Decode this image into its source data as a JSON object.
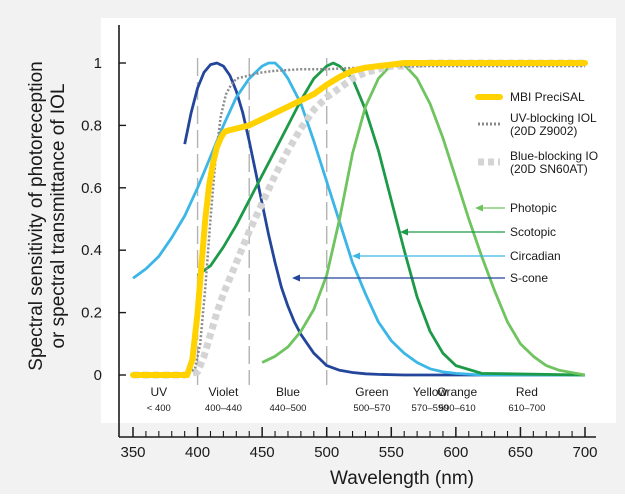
{
  "chart_data": {
    "type": "line",
    "xlabel": "Wavelength (nm)",
    "ylabel_line1": "Spectral sensitivity of photoreception",
    "ylabel_line2": "or spectral transmittance of IOL",
    "xlim": [
      350,
      700
    ],
    "ylim": [
      0,
      1
    ],
    "xticks": [
      "350",
      "400",
      "450",
      "500",
      "550",
      "600",
      "650",
      "700"
    ],
    "yticks": [
      "0",
      "0.2",
      "0.4",
      "0.6",
      "0.8",
      "1"
    ],
    "grid": false,
    "legend_position": "right",
    "bands": [
      {
        "name": "UV",
        "range": "< 400",
        "center": 370
      },
      {
        "name": "Violet",
        "range": "400–440",
        "center": 420
      },
      {
        "name": "Blue",
        "range": "440–500",
        "center": 470
      },
      {
        "name": "Green",
        "range": "500–570",
        "center": 535
      },
      {
        "name": "Yellow",
        "range": "570–590",
        "center": 580
      },
      {
        "name": "Orange",
        "range": "590–610",
        "center": 601
      },
      {
        "name": "Red",
        "range": "610–700",
        "center": 655
      }
    ],
    "band_dividers": [
      400,
      440,
      500
    ],
    "series": [
      {
        "name": "S-cone",
        "color": "#23469b",
        "style": "solid",
        "x": [
          390,
          395,
          400,
          405,
          410,
          415,
          420,
          425,
          430,
          435,
          440,
          445,
          450,
          455,
          460,
          465,
          470,
          475,
          480,
          485,
          490,
          495,
          500,
          510,
          520,
          530,
          540,
          560,
          600,
          700
        ],
        "y": [
          0.74,
          0.84,
          0.92,
          0.97,
          0.995,
          1.0,
          0.99,
          0.96,
          0.91,
          0.84,
          0.75,
          0.65,
          0.55,
          0.45,
          0.36,
          0.28,
          0.22,
          0.17,
          0.13,
          0.1,
          0.07,
          0.05,
          0.03,
          0.015,
          0.008,
          0.004,
          0.002,
          0.0,
          0.0,
          0.0
        ]
      },
      {
        "name": "Circadian",
        "color": "#3bb6e6",
        "style": "solid",
        "x": [
          350,
          360,
          370,
          380,
          390,
          400,
          410,
          420,
          430,
          440,
          450,
          455,
          460,
          465,
          470,
          480,
          490,
          500,
          510,
          520,
          530,
          540,
          550,
          560,
          570,
          580,
          590,
          600,
          620,
          700
        ],
        "y": [
          0.31,
          0.34,
          0.38,
          0.44,
          0.51,
          0.6,
          0.7,
          0.8,
          0.89,
          0.95,
          0.99,
          1.0,
          1.0,
          0.98,
          0.95,
          0.87,
          0.75,
          0.62,
          0.49,
          0.36,
          0.26,
          0.17,
          0.11,
          0.07,
          0.04,
          0.02,
          0.01,
          0.005,
          0.0,
          0.0
        ]
      },
      {
        "name": "Scotopic",
        "color": "#1d9a48",
        "style": "solid",
        "x": [
          400,
          410,
          420,
          430,
          440,
          450,
          460,
          470,
          480,
          490,
          500,
          505,
          510,
          520,
          530,
          540,
          550,
          560,
          570,
          580,
          590,
          600,
          620,
          700
        ],
        "y": [
          0.32,
          0.35,
          0.41,
          0.48,
          0.56,
          0.64,
          0.72,
          0.8,
          0.88,
          0.95,
          0.99,
          1.0,
          0.99,
          0.95,
          0.85,
          0.72,
          0.56,
          0.4,
          0.25,
          0.14,
          0.07,
          0.03,
          0.005,
          0.0
        ]
      },
      {
        "name": "Photopic",
        "color": "#6fc45f",
        "style": "solid",
        "x": [
          450,
          460,
          470,
          480,
          490,
          500,
          510,
          520,
          530,
          540,
          550,
          555,
          560,
          570,
          580,
          590,
          600,
          610,
          620,
          630,
          640,
          650,
          660,
          670,
          680,
          700
        ],
        "y": [
          0.04,
          0.06,
          0.09,
          0.14,
          0.21,
          0.32,
          0.5,
          0.71,
          0.86,
          0.95,
          0.995,
          1.0,
          0.995,
          0.95,
          0.87,
          0.76,
          0.63,
          0.5,
          0.38,
          0.27,
          0.17,
          0.1,
          0.06,
          0.03,
          0.015,
          0.0
        ]
      },
      {
        "name": "Blue-blocking IOL (20D SN60AT)",
        "color": "#d4d4d4",
        "style": "thick-dash",
        "x": [
          350,
          390,
          400,
          405,
          410,
          415,
          420,
          430,
          440,
          450,
          460,
          470,
          480,
          490,
          500,
          510,
          520,
          530,
          540,
          550,
          560,
          580,
          600,
          700
        ],
        "y": [
          0.0,
          0.0,
          0.01,
          0.06,
          0.13,
          0.2,
          0.26,
          0.36,
          0.46,
          0.55,
          0.64,
          0.72,
          0.79,
          0.85,
          0.89,
          0.92,
          0.95,
          0.97,
          0.98,
          0.99,
          0.99,
          1.0,
          1.0,
          1.0
        ]
      },
      {
        "name": "UV-blocking IOL (20D Z9002)",
        "color": "#8a8a8a",
        "style": "dotted",
        "x": [
          350,
          390,
          398,
          402,
          406,
          410,
          414,
          418,
          422,
          426,
          430,
          440,
          450,
          460,
          480,
          500,
          550,
          700
        ],
        "y": [
          0.0,
          0.0,
          0.02,
          0.1,
          0.28,
          0.5,
          0.7,
          0.83,
          0.9,
          0.93,
          0.95,
          0.96,
          0.97,
          0.975,
          0.98,
          0.98,
          0.99,
          0.99
        ]
      },
      {
        "name": "MBI PreciSAL",
        "color": "#ffd200",
        "style": "thick",
        "x": [
          350,
          392,
          396,
          400,
          403,
          406,
          409,
          412,
          415,
          418,
          421,
          425,
          430,
          440,
          450,
          460,
          470,
          480,
          490,
          500,
          510,
          520,
          530,
          540,
          550,
          560,
          600,
          700
        ],
        "y": [
          0.0,
          0.0,
          0.05,
          0.2,
          0.35,
          0.5,
          0.61,
          0.68,
          0.73,
          0.76,
          0.78,
          0.785,
          0.79,
          0.8,
          0.82,
          0.84,
          0.86,
          0.88,
          0.9,
          0.93,
          0.955,
          0.975,
          0.985,
          0.99,
          0.995,
          1.0,
          1.0,
          1.0
        ]
      }
    ],
    "legend": [
      {
        "label_lines": [
          "MBI PreciSAL"
        ],
        "series": "MBI PreciSAL"
      },
      {
        "label_lines": [
          "UV-blocking IOL",
          "(20D Z9002)"
        ],
        "series": "UV-blocking IOL (20D Z9002)"
      },
      {
        "label_lines": [
          "Blue-blocking IO",
          "(20D SN60AT)"
        ],
        "series": "Blue-blocking IOL (20D SN60AT)"
      }
    ],
    "annotations": [
      {
        "label": "Photopic",
        "color": "#6fc45f"
      },
      {
        "label": "Scotopic",
        "color": "#1d9a48"
      },
      {
        "label": "Circadian",
        "color": "#3bb6e6"
      },
      {
        "label": "S-cone",
        "color": "#23469b"
      }
    ]
  }
}
